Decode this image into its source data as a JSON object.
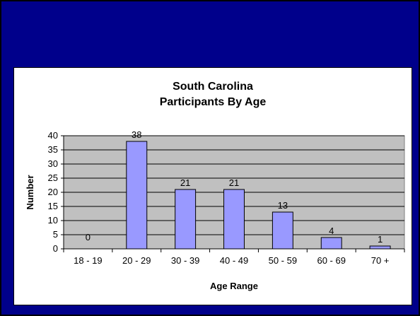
{
  "chart_data": {
    "type": "bar",
    "title_lines": [
      "South Carolina",
      "Participants By Age"
    ],
    "xlabel": "Age Range",
    "ylabel": "Number",
    "categories": [
      "18 - 19",
      "20 - 29",
      "30 - 39",
      "40 - 49",
      "50 - 59",
      "60 - 69",
      "70 +"
    ],
    "values": [
      0,
      38,
      21,
      21,
      13,
      4,
      1
    ],
    "ylim": [
      0,
      40
    ],
    "yticks": [
      0,
      5,
      10,
      15,
      20,
      25,
      30,
      35,
      40
    ],
    "data_labels": [
      "0",
      "38",
      "21",
      "21",
      "13",
      "4",
      "1"
    ],
    "grid": true,
    "colors": {
      "bar": "#9999ff",
      "plot_background": "#c0c0c0",
      "slide_background": "#00008b"
    }
  }
}
